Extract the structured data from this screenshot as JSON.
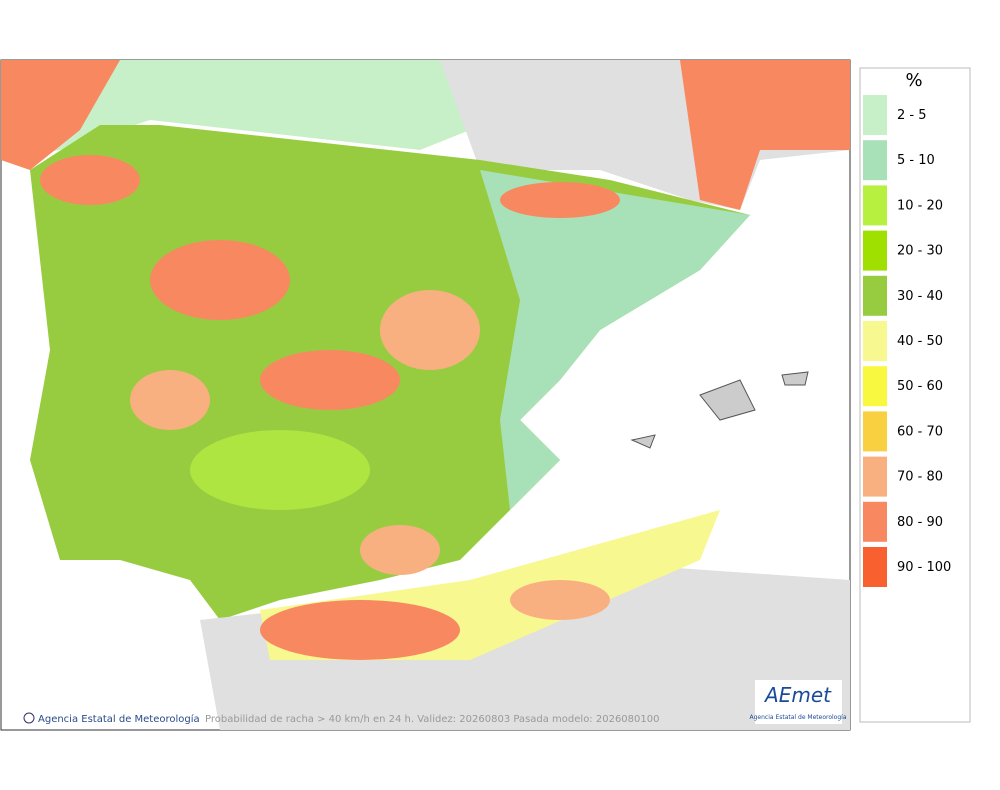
{
  "legend": {
    "unit": "%",
    "items": [
      {
        "label": "2 - 5",
        "color": "#c8f0c8"
      },
      {
        "label": "5 - 10",
        "color": "#a8e0b8"
      },
      {
        "label": "10 - 20",
        "color": "#b8f040"
      },
      {
        "label": "20 - 30",
        "color": "#a0e000"
      },
      {
        "label": "30 - 40",
        "color": "#98cc40"
      },
      {
        "label": "40 - 50",
        "color": "#f8f890"
      },
      {
        "label": "50 - 60",
        "color": "#f8f840"
      },
      {
        "label": "60 - 70",
        "color": "#f8d040"
      },
      {
        "label": "70 - 80",
        "color": "#f8b080"
      },
      {
        "label": "80 - 90",
        "color": "#f88860"
      },
      {
        "label": "90 - 100",
        "color": "#f86030"
      }
    ]
  },
  "footer": {
    "credit": "Agencia Estatal de Meteorología",
    "caption": "Probabilidad de racha > 40 km/h en 24 h. Validez: 20260803 Pasada modelo: 2026080100"
  },
  "logo": {
    "name": "AEmet",
    "subtitle": "Agencia Estatal de Meteorología"
  }
}
